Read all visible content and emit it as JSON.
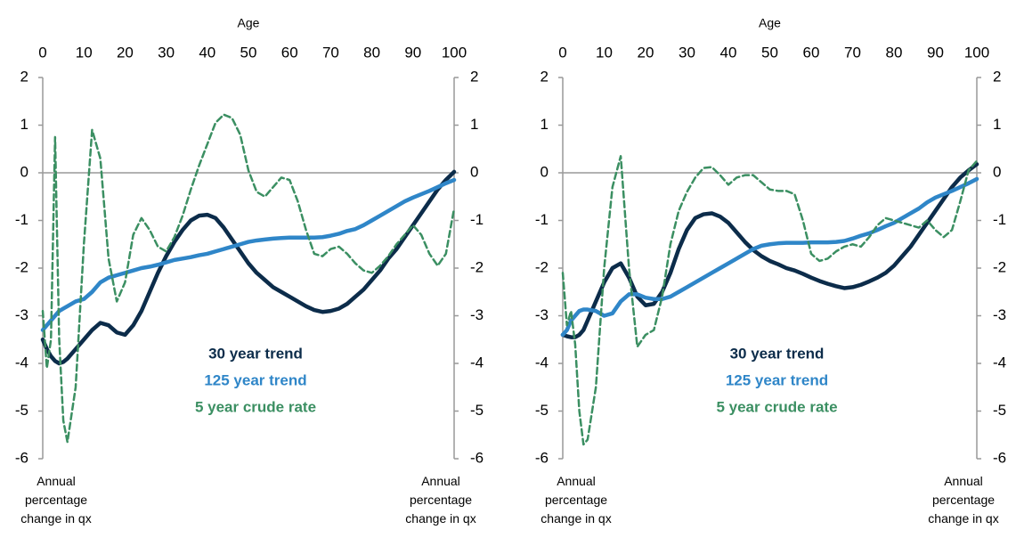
{
  "chart_data": [
    {
      "type": "line",
      "xlabel": "Age",
      "ylabel": "Annual percentage change in qx",
      "y2label": "Annual percentage change in qx",
      "xlim": [
        0,
        100
      ],
      "xticks": [
        0,
        10,
        20,
        30,
        40,
        50,
        60,
        70,
        80,
        90,
        100
      ],
      "ylim": [
        -6,
        2
      ],
      "yticks": [
        -6,
        -5,
        -4,
        -3,
        -2,
        -1,
        0,
        1,
        2
      ],
      "y2lim": [
        -6,
        2
      ],
      "y2ticks": [
        -6,
        -5,
        -4,
        -3,
        -2,
        -1,
        0,
        1,
        2
      ],
      "legend": "lower center",
      "x": [
        0,
        1,
        2,
        3,
        4,
        5,
        6,
        8,
        10,
        12,
        14,
        16,
        18,
        20,
        22,
        24,
        26,
        28,
        30,
        32,
        34,
        36,
        38,
        40,
        42,
        44,
        46,
        48,
        50,
        52,
        54,
        56,
        58,
        60,
        62,
        64,
        66,
        68,
        70,
        72,
        74,
        76,
        78,
        80,
        82,
        84,
        86,
        88,
        90,
        92,
        94,
        96,
        98,
        100
      ],
      "series": [
        {
          "name": "30 year trend",
          "color": "#0c2c4a",
          "linestyle": "solid",
          "values": [
            -3.5,
            -3.7,
            -3.85,
            -3.95,
            -4.0,
            -3.97,
            -3.9,
            -3.7,
            -3.5,
            -3.3,
            -3.15,
            -3.2,
            -3.35,
            -3.4,
            -3.2,
            -2.9,
            -2.5,
            -2.1,
            -1.75,
            -1.45,
            -1.2,
            -1.0,
            -0.9,
            -0.88,
            -0.95,
            -1.15,
            -1.4,
            -1.65,
            -1.9,
            -2.1,
            -2.25,
            -2.4,
            -2.5,
            -2.6,
            -2.7,
            -2.8,
            -2.88,
            -2.92,
            -2.9,
            -2.85,
            -2.75,
            -2.6,
            -2.45,
            -2.25,
            -2.05,
            -1.8,
            -1.6,
            -1.35,
            -1.1,
            -0.85,
            -0.6,
            -0.35,
            -0.15,
            0.02
          ]
        },
        {
          "name": "125 year trend",
          "color": "#2f86c8",
          "linestyle": "solid",
          "values": [
            -3.3,
            -3.2,
            -3.1,
            -3.0,
            -2.9,
            -2.85,
            -2.8,
            -2.7,
            -2.65,
            -2.5,
            -2.3,
            -2.2,
            -2.15,
            -2.1,
            -2.05,
            -2.0,
            -1.97,
            -1.93,
            -1.88,
            -1.83,
            -1.8,
            -1.77,
            -1.73,
            -1.7,
            -1.65,
            -1.6,
            -1.55,
            -1.5,
            -1.45,
            -1.42,
            -1.4,
            -1.38,
            -1.37,
            -1.36,
            -1.36,
            -1.36,
            -1.36,
            -1.35,
            -1.32,
            -1.28,
            -1.22,
            -1.18,
            -1.1,
            -1.0,
            -0.9,
            -0.8,
            -0.7,
            -0.6,
            -0.52,
            -0.45,
            -0.38,
            -0.3,
            -0.22,
            -0.15
          ]
        },
        {
          "name": "5 year crude rate",
          "color": "#3b8f62",
          "linestyle": "dashed",
          "values": [
            -2.9,
            -4.1,
            -3.5,
            0.75,
            -3.5,
            -5.2,
            -5.65,
            -4.5,
            -1.5,
            0.9,
            0.3,
            -1.8,
            -2.7,
            -2.3,
            -1.3,
            -0.95,
            -1.2,
            -1.55,
            -1.65,
            -1.35,
            -0.9,
            -0.35,
            0.15,
            0.6,
            1.05,
            1.22,
            1.15,
            0.8,
            0.05,
            -0.4,
            -0.5,
            -0.3,
            -0.1,
            -0.15,
            -0.6,
            -1.2,
            -1.7,
            -1.75,
            -1.6,
            -1.55,
            -1.7,
            -1.9,
            -2.05,
            -2.1,
            -1.95,
            -1.75,
            -1.5,
            -1.3,
            -1.1,
            -1.3,
            -1.7,
            -1.95,
            -1.7,
            -0.75
          ]
        }
      ]
    },
    {
      "type": "line",
      "xlabel": "Age",
      "ylabel": "Annual percentage change in qx",
      "y2label": "Annual percentage change in qx",
      "xlim": [
        0,
        100
      ],
      "xticks": [
        0,
        10,
        20,
        30,
        40,
        50,
        60,
        70,
        80,
        90,
        100
      ],
      "ylim": [
        -6,
        2
      ],
      "yticks": [
        -6,
        -5,
        -4,
        -3,
        -2,
        -1,
        0,
        1,
        2
      ],
      "y2lim": [
        -6,
        2
      ],
      "y2ticks": [
        -6,
        -5,
        -4,
        -3,
        -2,
        -1,
        0,
        1,
        2
      ],
      "legend": "lower center",
      "x": [
        0,
        1,
        2,
        3,
        4,
        5,
        6,
        8,
        10,
        12,
        14,
        16,
        18,
        20,
        22,
        24,
        26,
        28,
        30,
        32,
        34,
        36,
        38,
        40,
        42,
        44,
        46,
        48,
        50,
        52,
        54,
        56,
        58,
        60,
        62,
        64,
        66,
        68,
        70,
        72,
        74,
        76,
        78,
        80,
        82,
        84,
        86,
        88,
        90,
        92,
        94,
        96,
        98,
        100
      ],
      "series": [
        {
          "name": "30 year trend",
          "color": "#0c2c4a",
          "linestyle": "solid",
          "values": [
            -3.4,
            -3.43,
            -3.45,
            -3.45,
            -3.4,
            -3.3,
            -3.1,
            -2.7,
            -2.3,
            -2.0,
            -1.9,
            -2.2,
            -2.6,
            -2.78,
            -2.75,
            -2.5,
            -2.1,
            -1.6,
            -1.2,
            -0.95,
            -0.87,
            -0.85,
            -0.92,
            -1.05,
            -1.25,
            -1.45,
            -1.62,
            -1.75,
            -1.85,
            -1.92,
            -2.0,
            -2.05,
            -2.12,
            -2.2,
            -2.27,
            -2.33,
            -2.38,
            -2.42,
            -2.4,
            -2.35,
            -2.28,
            -2.2,
            -2.1,
            -1.95,
            -1.75,
            -1.55,
            -1.3,
            -1.05,
            -0.8,
            -0.55,
            -0.3,
            -0.1,
            0.05,
            0.18
          ]
        },
        {
          "name": "125 year trend",
          "color": "#2f86c8",
          "linestyle": "solid",
          "values": [
            -3.4,
            -3.3,
            -3.1,
            -3.0,
            -2.9,
            -2.87,
            -2.87,
            -2.9,
            -3.0,
            -2.95,
            -2.7,
            -2.55,
            -2.55,
            -2.62,
            -2.65,
            -2.65,
            -2.6,
            -2.5,
            -2.4,
            -2.3,
            -2.2,
            -2.1,
            -2.0,
            -1.9,
            -1.8,
            -1.7,
            -1.6,
            -1.53,
            -1.5,
            -1.48,
            -1.47,
            -1.47,
            -1.47,
            -1.46,
            -1.46,
            -1.46,
            -1.45,
            -1.43,
            -1.38,
            -1.32,
            -1.27,
            -1.2,
            -1.12,
            -1.05,
            -0.95,
            -0.85,
            -0.75,
            -0.62,
            -0.52,
            -0.45,
            -0.38,
            -0.3,
            -0.22,
            -0.13
          ]
        },
        {
          "name": "5 year crude rate",
          "color": "#3b8f62",
          "linestyle": "dashed",
          "values": [
            -2.1,
            -3.2,
            -2.9,
            -3.6,
            -5.0,
            -5.7,
            -5.6,
            -4.5,
            -2.0,
            -0.3,
            0.35,
            -2.0,
            -3.65,
            -3.4,
            -3.3,
            -2.6,
            -1.5,
            -0.8,
            -0.4,
            -0.1,
            0.1,
            0.12,
            -0.05,
            -0.25,
            -0.1,
            -0.05,
            -0.05,
            -0.2,
            -0.35,
            -0.38,
            -0.38,
            -0.45,
            -1.0,
            -1.7,
            -1.85,
            -1.8,
            -1.65,
            -1.55,
            -1.5,
            -1.55,
            -1.35,
            -1.1,
            -0.95,
            -1.0,
            -1.05,
            -1.1,
            -1.15,
            -1.0,
            -1.2,
            -1.35,
            -1.2,
            -0.6,
            0.05,
            0.25
          ]
        }
      ]
    }
  ]
}
